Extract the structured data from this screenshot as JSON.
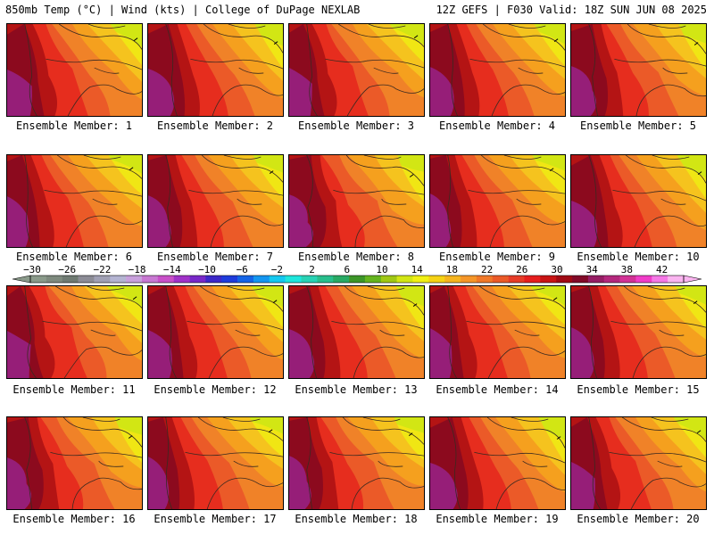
{
  "header": {
    "left": "850mb Temp (°C) | Wind (kts) | College of DuPage NEXLAB",
    "right": "12Z GEFS | F030 Valid: 18Z SUN JUN 08 2025"
  },
  "members": [
    "Ensemble Member: 1",
    "Ensemble Member: 2",
    "Ensemble Member: 3",
    "Ensemble Member: 4",
    "Ensemble Member: 5",
    "Ensemble Member: 6",
    "Ensemble Member: 7",
    "Ensemble Member: 8",
    "Ensemble Member: 9",
    "Ensemble Member: 10",
    "Ensemble Member: 11",
    "Ensemble Member: 12",
    "Ensemble Member: 13",
    "Ensemble Member: 14",
    "Ensemble Member: 15",
    "Ensemble Member: 16",
    "Ensemble Member: 17",
    "Ensemble Member: 18",
    "Ensemble Member: 19",
    "Ensemble Member: 20"
  ],
  "colorbar": {
    "labels": [
      "-30",
      "-26",
      "-22",
      "-18",
      "-14",
      "-10",
      "-6",
      "-2",
      "2",
      "6",
      "10",
      "14",
      "18",
      "22",
      "26",
      "30",
      "34",
      "38",
      "42"
    ],
    "colors": [
      "#8a9a8a",
      "#7e8a7e",
      "#6f7a72",
      "#8c8c96",
      "#a0a0b4",
      "#b4b4d2",
      "#c8a0dc",
      "#c878d2",
      "#c850c8",
      "#a032c8",
      "#7828c8",
      "#3c28c8",
      "#1e3cdc",
      "#1464e6",
      "#1496f0",
      "#14c8f0",
      "#1ee6dc",
      "#28d2b4",
      "#28be8c",
      "#28aa64",
      "#3c9628",
      "#64b41e",
      "#a0c814",
      "#d2e614",
      "#f0f014",
      "#f5d214",
      "#f5b41e",
      "#f59628",
      "#f07828",
      "#eb5a28",
      "#e63c28",
      "#e61e1e",
      "#c81414",
      "#a00a14",
      "#820a28",
      "#961e64",
      "#b4287d",
      "#d23296",
      "#f03cc8",
      "#f578e6",
      "#fab4f0"
    ]
  },
  "map": {
    "colors": {
      "purple": "#961e78",
      "maroon": "#8c0a1e",
      "darkred": "#b41414",
      "red": "#e62d1e",
      "redorange": "#eb5a28",
      "orange": "#f08228",
      "amber": "#f5a01e",
      "gold": "#f5c31e",
      "yellow": "#f0e614",
      "lime": "#d2e614"
    }
  }
}
